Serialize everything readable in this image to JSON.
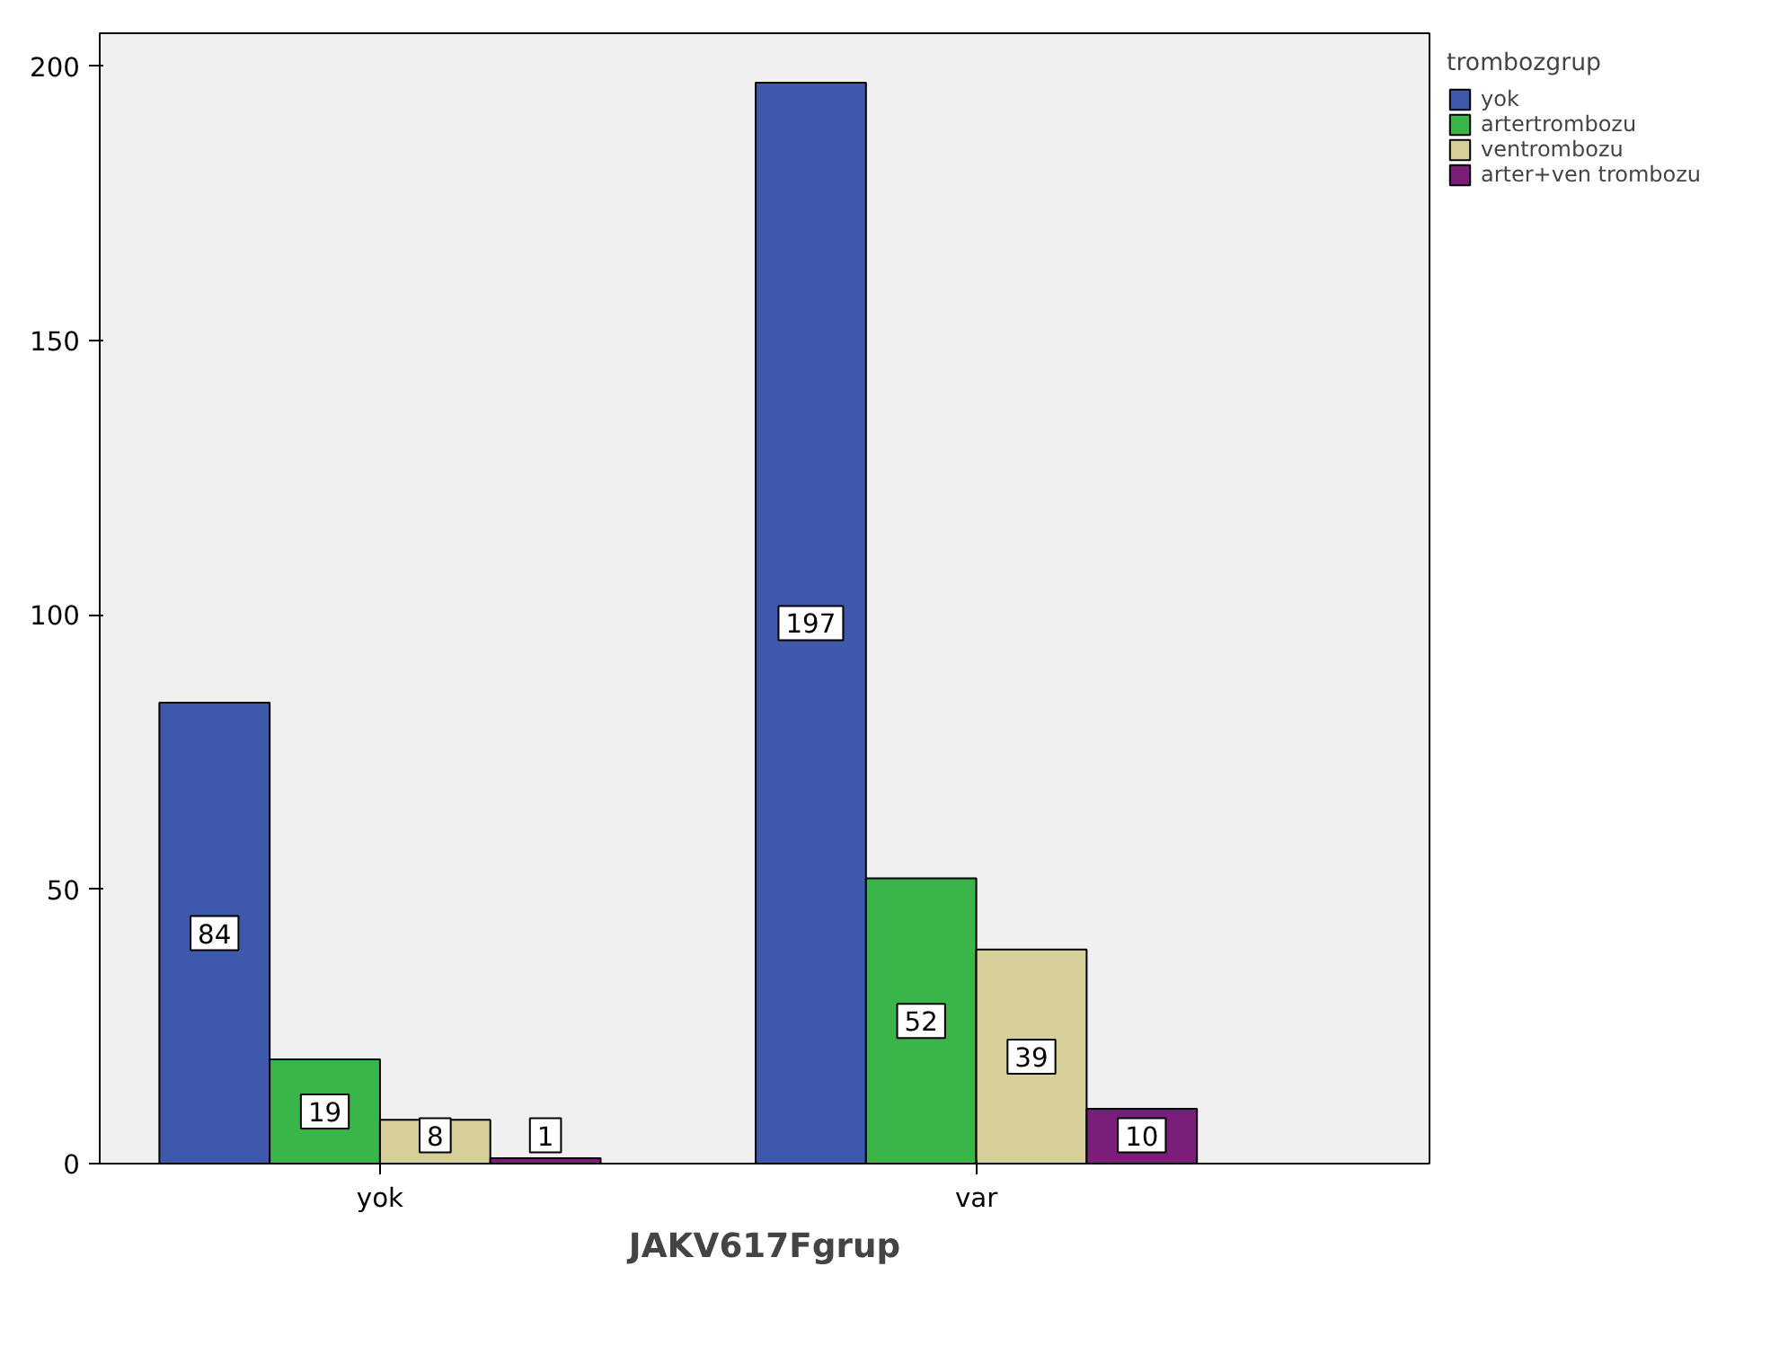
{
  "chart_data": {
    "type": "bar",
    "xlabel": "JAKV617Fgrup",
    "legend_title": "trombozgrup",
    "categories": [
      "yok",
      "var"
    ],
    "series": [
      {
        "name": "yok",
        "color": "#3e58ac",
        "values": [
          84,
          197
        ]
      },
      {
        "name": "artertrombozu",
        "color": "#3ab54a",
        "values": [
          19,
          52
        ]
      },
      {
        "name": "ventrombozu",
        "color": "#d6cf9a",
        "values": [
          8,
          39
        ]
      },
      {
        "name": "arter+ven trombozu",
        "color": "#7b1e7a",
        "values": [
          1,
          10
        ]
      }
    ],
    "ylim": [
      0,
      206
    ],
    "yticks": [
      0,
      50,
      100,
      150,
      200
    ],
    "data_labels": true,
    "grid": false,
    "legend": "top right"
  }
}
